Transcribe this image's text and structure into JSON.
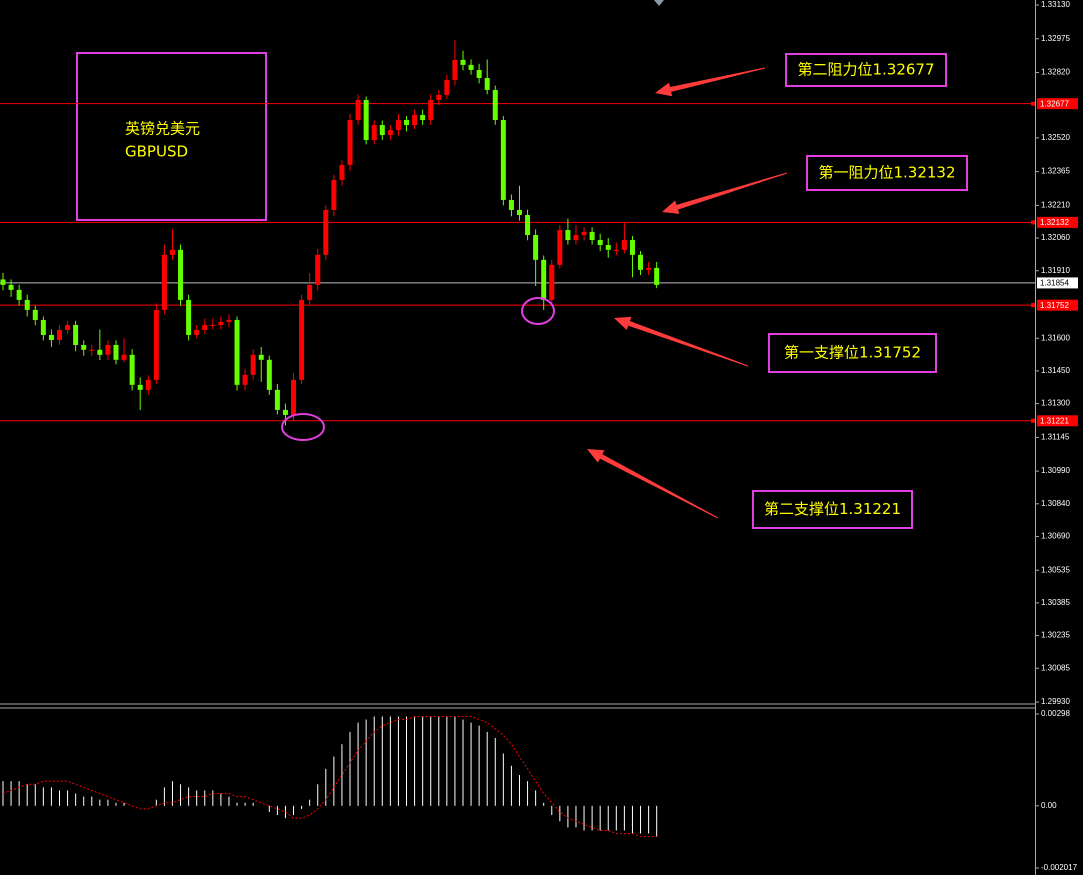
{
  "chart_data": [
    {
      "type": "candlestick",
      "title_box": [
        "英镑兑美元",
        "GBPUSD"
      ],
      "annotations": [
        "第二阻力位1.32677",
        "第一阻力位1.32132",
        "第一支撑位1.31752",
        "第二支撑位1.31221"
      ],
      "up_color": "#ff0000",
      "down_color": "#66ff00",
      "open": [
        1.3187,
        1.31845,
        1.31822,
        1.31776,
        1.3173,
        1.31684,
        1.31615,
        1.31592,
        1.31638,
        1.31661,
        1.31569,
        1.31547,
        1.31547,
        1.31524,
        1.31569,
        1.31501,
        1.31524,
        1.31386,
        1.31363,
        1.31409,
        1.3173,
        1.31983,
        1.32006,
        1.31776,
        1.31615,
        1.31638,
        1.31661,
        1.31661,
        1.31675,
        1.31684,
        1.31386,
        1.31432,
        1.31524,
        1.31501,
        1.31363,
        1.31271,
        1.31248,
        1.31409,
        1.31776,
        1.31845,
        1.31983,
        1.32189,
        1.32327,
        1.32396,
        1.32602,
        1.32694,
        1.3251,
        1.32579,
        1.32533,
        1.32556,
        1.32602,
        1.32579,
        1.32625,
        1.32602,
        1.32694,
        1.32717,
        1.32786,
        1.32878,
        1.32855,
        1.32832,
        1.32795,
        1.3274,
        1.32602,
        1.32235,
        1.32189,
        1.32166,
        1.32074,
        1.3196,
        1.31776,
        1.31937,
        1.32097,
        1.32051,
        1.32074,
        1.32088,
        1.32051,
        1.32028,
        1.32006,
        1.32006,
        1.32051,
        1.31983,
        1.31914,
        1.31923
      ],
      "high": [
        1.319,
        1.3187,
        1.31845,
        1.318,
        1.3175,
        1.317,
        1.3164,
        1.3166,
        1.3168,
        1.3168,
        1.3159,
        1.3157,
        1.3164,
        1.3159,
        1.3159,
        1.316,
        1.3155,
        1.3142,
        1.3143,
        1.3176,
        1.3203,
        1.321,
        1.3203,
        1.318,
        1.3166,
        1.3169,
        1.3169,
        1.317,
        1.3171,
        1.317,
        1.3146,
        1.3155,
        1.3156,
        1.3152,
        1.3139,
        1.313,
        1.3144,
        1.318,
        1.319,
        1.3201,
        1.3221,
        1.3235,
        1.3242,
        1.3263,
        1.3272,
        1.3271,
        1.326,
        1.326,
        1.3258,
        1.3263,
        1.3262,
        1.3265,
        1.3265,
        1.3272,
        1.3274,
        1.3281,
        1.3297,
        1.3292,
        1.3288,
        1.3286,
        1.3288,
        1.3276,
        1.3262,
        1.3226,
        1.323,
        1.3219,
        1.321,
        1.3198,
        1.3196,
        1.3212,
        1.3215,
        1.3212,
        1.3211,
        1.3211,
        1.3208,
        1.3206,
        1.3204,
        1.32132,
        1.3207,
        1.32,
        1.3195,
        1.3195
      ],
      "low": [
        1.3182,
        1.3179,
        1.3175,
        1.317,
        1.3166,
        1.3159,
        1.3156,
        1.3157,
        1.3162,
        1.3154,
        1.3152,
        1.3152,
        1.315,
        1.315,
        1.3148,
        1.3149,
        1.3136,
        1.31271,
        1.3134,
        1.3139,
        1.3171,
        1.3196,
        1.3175,
        1.3159,
        1.316,
        1.3162,
        1.3164,
        1.3164,
        1.3165,
        1.3136,
        1.3136,
        1.3141,
        1.314,
        1.3134,
        1.3125,
        1.312,
        1.3122,
        1.3139,
        1.3175,
        1.3182,
        1.3196,
        1.3216,
        1.323,
        1.3237,
        1.3258,
        1.3249,
        1.3249,
        1.3251,
        1.3251,
        1.3253,
        1.3255,
        1.3256,
        1.3258,
        1.3258,
        1.3267,
        1.327,
        1.3276,
        1.3283,
        1.3281,
        1.3277,
        1.3272,
        1.3258,
        1.3221,
        1.3216,
        1.3214,
        1.3205,
        1.3184,
        1.3173,
        1.31752,
        1.3192,
        1.3203,
        1.3203,
        1.3205,
        1.3203,
        1.32,
        1.3197,
        1.3198,
        1.3199,
        1.3188,
        1.3189,
        1.3189,
        1.3183
      ],
      "close": [
        1.31845,
        1.31822,
        1.31776,
        1.3173,
        1.31684,
        1.31615,
        1.31592,
        1.31638,
        1.31661,
        1.31569,
        1.31547,
        1.31547,
        1.31524,
        1.31569,
        1.31501,
        1.31524,
        1.31386,
        1.31363,
        1.31409,
        1.3173,
        1.31983,
        1.32006,
        1.31776,
        1.31615,
        1.31638,
        1.31661,
        1.31661,
        1.31675,
        1.31684,
        1.31386,
        1.31432,
        1.31524,
        1.31501,
        1.31363,
        1.31271,
        1.31248,
        1.31409,
        1.31776,
        1.31845,
        1.31983,
        1.32189,
        1.32327,
        1.32396,
        1.32602,
        1.32694,
        1.3251,
        1.32579,
        1.32533,
        1.32556,
        1.32602,
        1.32579,
        1.32625,
        1.32602,
        1.32694,
        1.32717,
        1.32786,
        1.32878,
        1.32855,
        1.32832,
        1.32795,
        1.3274,
        1.32602,
        1.32235,
        1.32189,
        1.32166,
        1.32074,
        1.3196,
        1.31776,
        1.31937,
        1.32097,
        1.32051,
        1.32074,
        1.32088,
        1.32051,
        1.32028,
        1.32006,
        1.32006,
        1.32051,
        1.31983,
        1.31914,
        1.31923,
        1.31845
      ],
      "levels": [
        {
          "value": 1.32677,
          "color": "#ff0000"
        },
        {
          "value": 1.32132,
          "color": "#ff0000"
        },
        {
          "value": 1.31854,
          "color": "#c0c0c0"
        },
        {
          "value": 1.31752,
          "color": "#ff0000"
        },
        {
          "value": 1.31221,
          "color": "#ff0000"
        }
      ],
      "ylim": [
        1.2993,
        1.3313
      ],
      "yticks": [
        {
          "value": 1.3313,
          "label": "1.33130"
        },
        1.32975,
        {
          "value": 1.3282,
          "label": "1.32820"
        },
        {
          "value": 1.3252,
          "label": "1.32520"
        },
        1.32365,
        {
          "value": 1.3221,
          "label": "1.32210"
        },
        {
          "value": 1.3206,
          "label": "1.32060"
        },
        {
          "value": 1.3191,
          "label": "1.31910"
        },
        {
          "value": 1.316,
          "label": "1.31600"
        },
        {
          "value": 1.3145,
          "label": "1.31450"
        },
        {
          "value": 1.313,
          "label": "1.31300"
        },
        1.31145,
        {
          "value": 1.3099,
          "label": "1.30990"
        },
        {
          "value": 1.3084,
          "label": "1.30840"
        },
        {
          "value": 1.3069,
          "label": "1.30690"
        },
        1.30535,
        1.30385,
        1.30235,
        1.30085,
        {
          "value": 1.2993,
          "label": "1.29930"
        }
      ]
    },
    {
      "type": "macd",
      "histogram_color": "#ffffff",
      "signal_color": "#ff0000",
      "histogram": [
        0.0008,
        0.0008,
        0.0008,
        0.0007,
        0.0007,
        0.0006,
        0.0006,
        0.0005,
        0.0005,
        0.0004,
        0.0003,
        0.0003,
        0.0002,
        0.0002,
        0.0001,
        0.0001,
        0,
        0,
        0,
        0.0002,
        0.0006,
        0.0008,
        0.0007,
        0.0006,
        0.0005,
        0.0005,
        0.0005,
        0.0004,
        0.0003,
        0.0001,
        0.0001,
        0.0001,
        0,
        -0.0002,
        -0.0003,
        -0.0004,
        -0.0003,
        -0.0001,
        0.0002,
        0.0007,
        0.0012,
        0.0016,
        0.002,
        0.0024,
        0.0027,
        0.0028,
        0.0029,
        0.0029,
        0.0029,
        0.0029,
        0.0029,
        0.0029,
        0.0029,
        0.0029,
        0.0029,
        0.0029,
        0.0029,
        0.0028,
        0.0027,
        0.0026,
        0.0024,
        0.0022,
        0.0017,
        0.0013,
        0.001,
        0.0008,
        0.0005,
        0.0001,
        -0.0003,
        -0.0005,
        -0.0007,
        -0.0007,
        -0.0008,
        -0.0008,
        -0.0008,
        -0.0008,
        -0.0008,
        -0.0008,
        -0.0009,
        -0.0009,
        -0.0009,
        -0.001
      ],
      "signal": [
        0.0004,
        0.0005,
        0.0006,
        0.0007,
        0.0007,
        0.0008,
        0.0008,
        0.0008,
        0.0008,
        0.0007,
        0.0006,
        0.0005,
        0.0004,
        0.0003,
        0.0002,
        0.0001,
        0,
        -0.0001,
        -0.0001,
        0,
        0.0001,
        0.0001,
        0.0002,
        0.0003,
        0.0003,
        0.0003,
        0.0004,
        0.0004,
        0.0004,
        0.0003,
        0.0003,
        0.0002,
        0.0001,
        0,
        -0.0001,
        -0.0002,
        -0.0004,
        -0.0004,
        -0.0003,
        -0.0001,
        0.0002,
        0.0006,
        0.001,
        0.0014,
        0.0018,
        0.0021,
        0.0024,
        0.0026,
        0.0027,
        0.0028,
        0.0028,
        0.0029,
        0.0029,
        0.0029,
        0.0029,
        0.0029,
        0.0029,
        0.0029,
        0.0029,
        0.0028,
        0.0027,
        0.0025,
        0.0023,
        0.002,
        0.0016,
        0.0012,
        0.0008,
        0.0004,
        0.0001,
        -0.0002,
        -0.0004,
        -0.0005,
        -0.0006,
        -0.0007,
        -0.0008,
        -0.0008,
        -0.0009,
        -0.0009,
        -0.0009,
        -0.001,
        -0.001,
        -0.001
      ],
      "ylim": [
        -0.002017,
        0.00298
      ],
      "yticks": [
        0.00298,
        {
          "value": 0,
          "label": "0.00"
        },
        -0.002017
      ]
    }
  ]
}
